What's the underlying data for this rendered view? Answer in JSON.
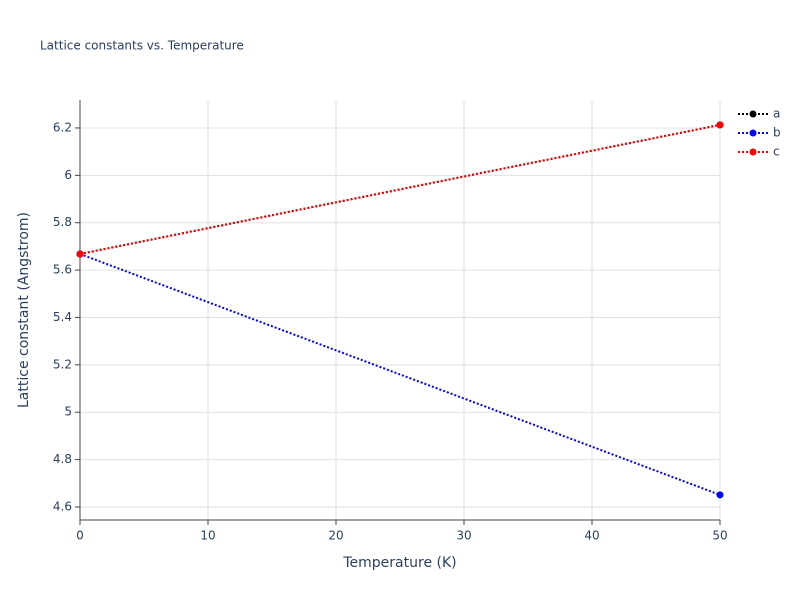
{
  "chart_data": {
    "type": "line",
    "title": "Lattice constants vs. Temperature",
    "x_label": "Temperature (K)",
    "y_label": "Lattice constant (Angstrom)",
    "x": [
      0,
      50
    ],
    "series": [
      {
        "name": "a",
        "color": "#000000",
        "values": [
          5.668,
          6.213
        ]
      },
      {
        "name": "b",
        "color": "#0000ff",
        "values": [
          5.668,
          4.651
        ]
      },
      {
        "name": "c",
        "color": "#ff0000",
        "values": [
          5.668,
          6.213
        ]
      }
    ],
    "xlim": [
      0,
      50
    ],
    "xticks": [
      0,
      10,
      20,
      30,
      40,
      50
    ],
    "ylim": [
      4.545,
      6.318
    ],
    "yticks": [
      4.6,
      4.8,
      5,
      5.2,
      5.4,
      5.6,
      5.8,
      6,
      6.2
    ],
    "grid": true,
    "legend": "right"
  }
}
